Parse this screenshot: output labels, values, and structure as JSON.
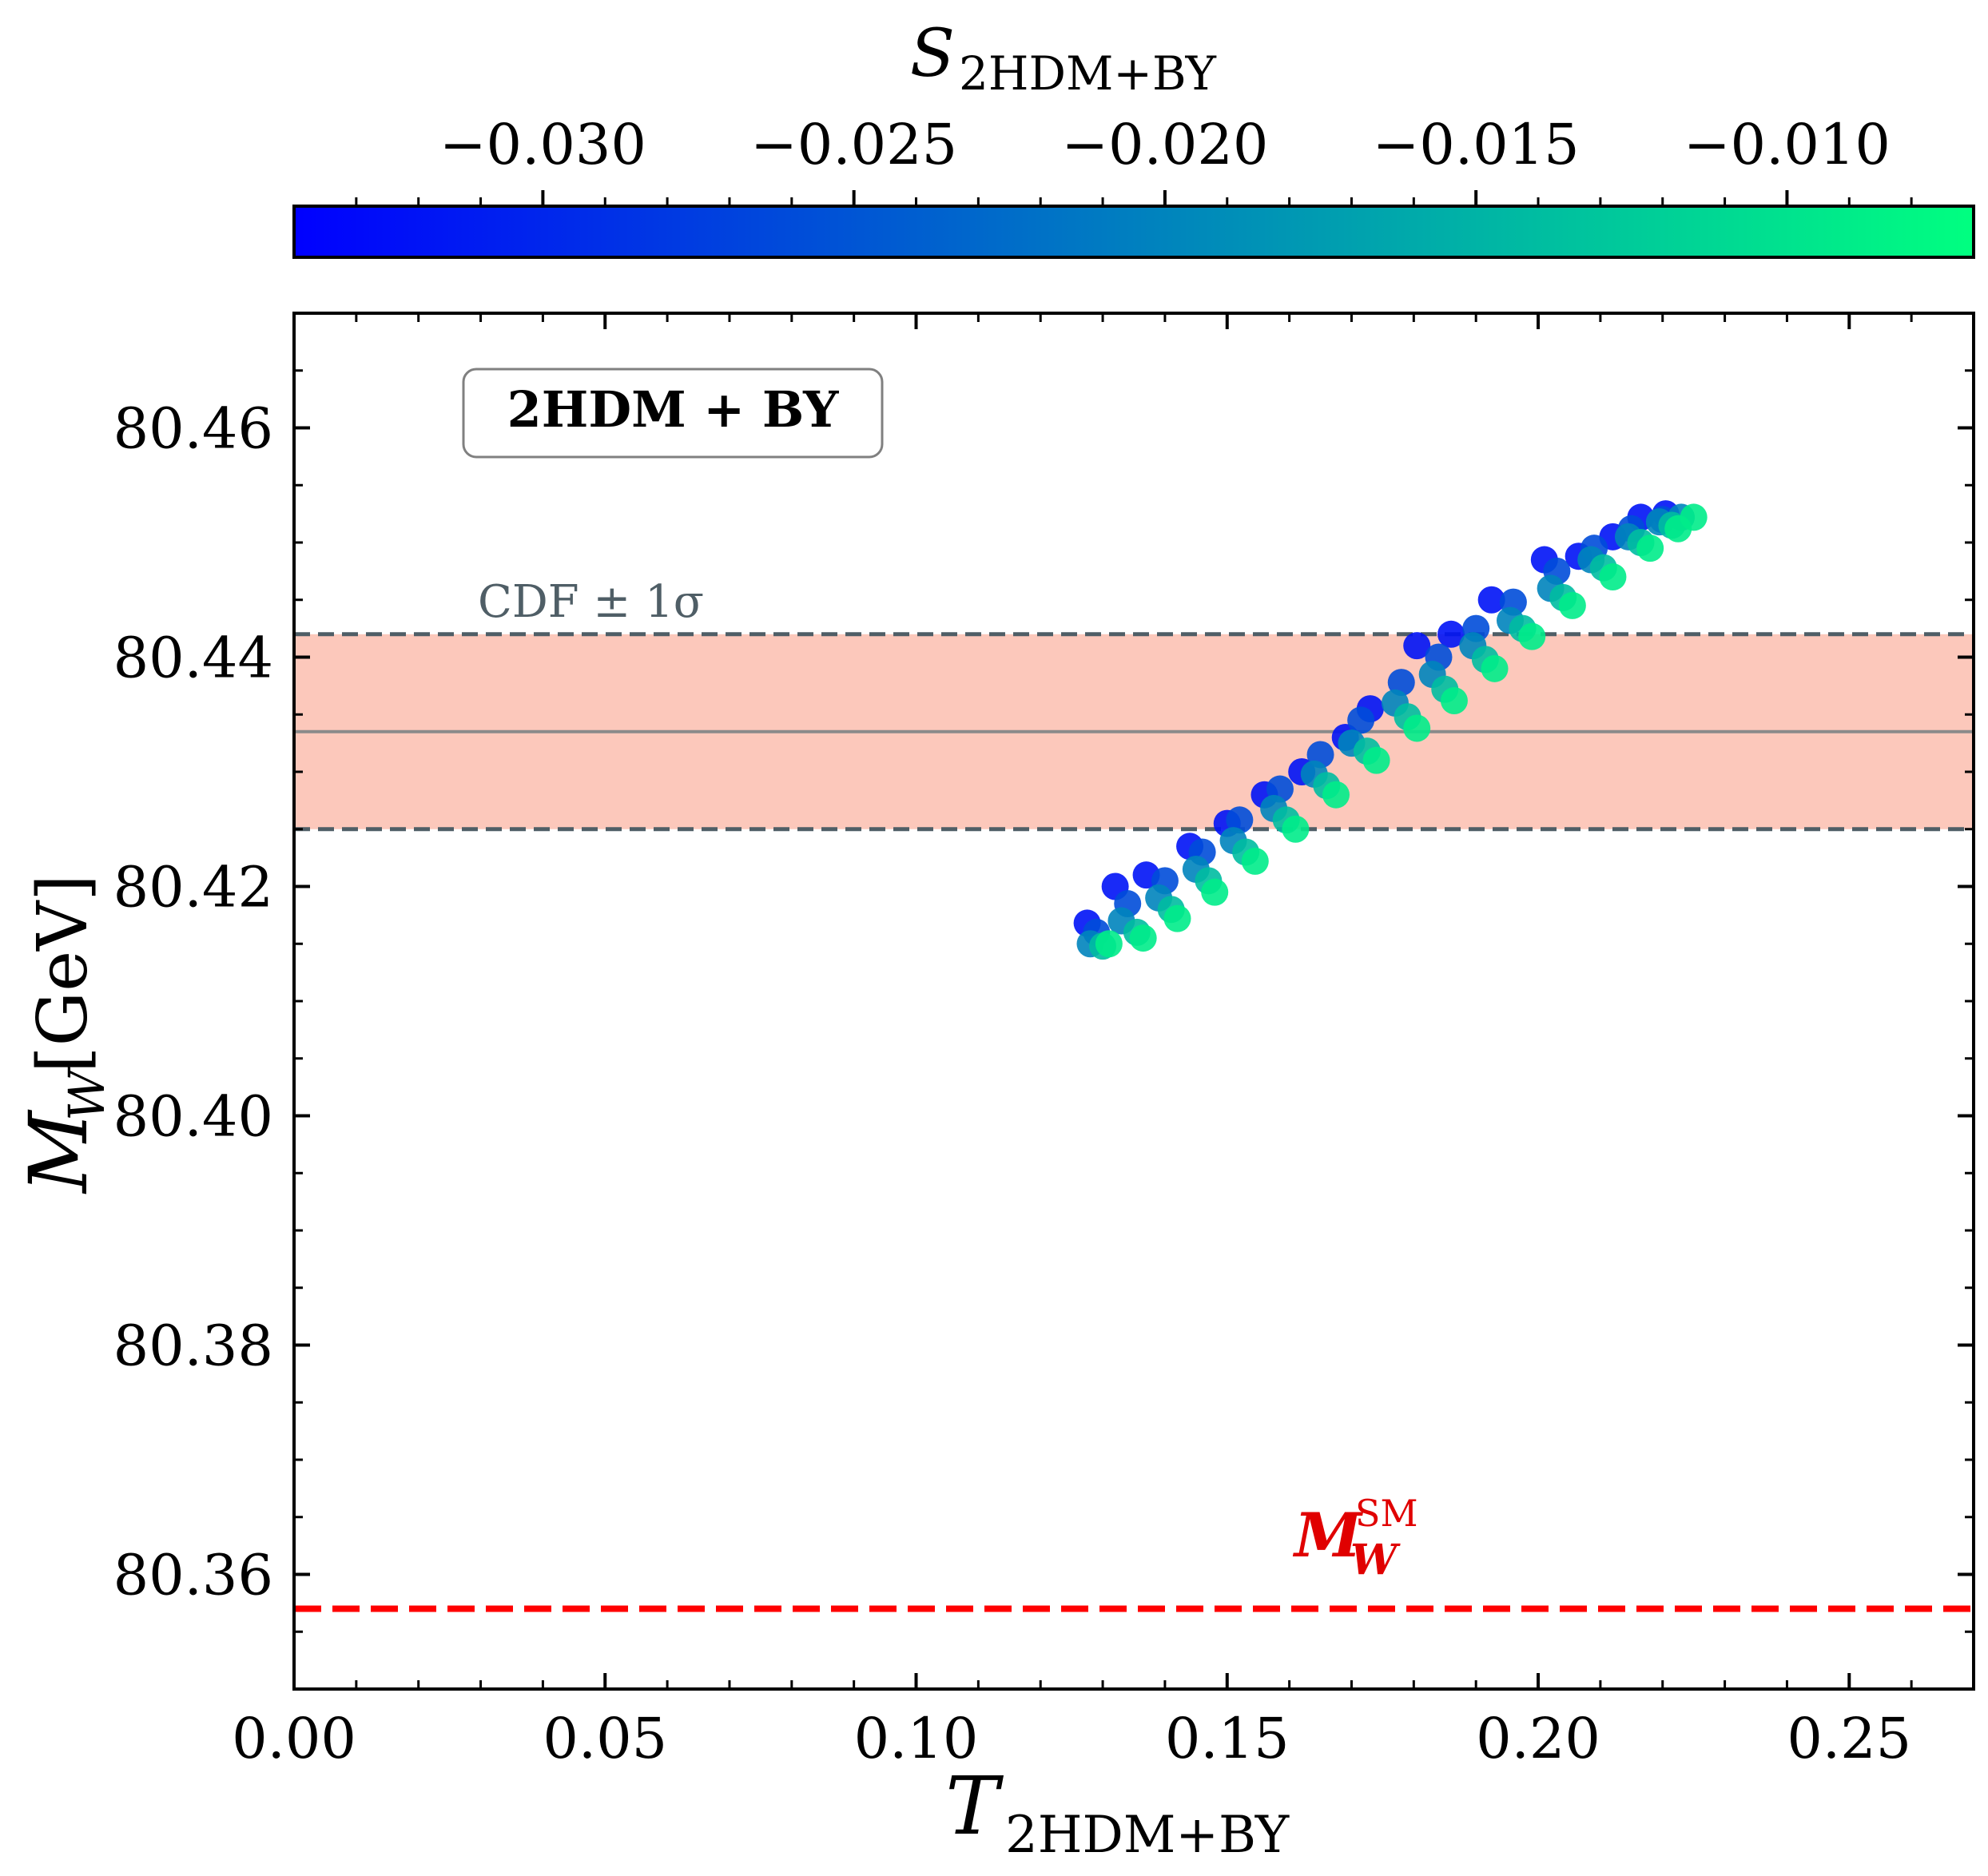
{
  "chart_data": {
    "type": "scatter",
    "title": "",
    "xlabel": "T",
    "xlabel_sub": "2HDM+BY",
    "ylabel": "M",
    "ylabel_sub": "W",
    "ylabel_unit": "[GeV]",
    "xlim": [
      0.0,
      0.27
    ],
    "ylim": [
      80.35,
      80.47
    ],
    "x_ticks": [
      0.0,
      0.05,
      0.1,
      0.15,
      0.2,
      0.25
    ],
    "x_tick_labels": [
      "0.00",
      "0.05",
      "0.10",
      "0.15",
      "0.20",
      "0.25"
    ],
    "y_ticks": [
      80.36,
      80.38,
      80.4,
      80.42,
      80.44,
      80.46
    ],
    "y_tick_labels": [
      "80.36",
      "80.38",
      "80.40",
      "80.42",
      "80.44",
      "80.46"
    ],
    "grid": false,
    "model_label": "2HDM + BY",
    "colorbar": {
      "label": "S",
      "label_sub": "2HDM+BY",
      "range": [
        -0.034,
        -0.007
      ],
      "ticks": [
        -0.03,
        -0.025,
        -0.02,
        -0.015,
        -0.01
      ],
      "tick_labels": [
        "−0.030",
        "−0.025",
        "−0.020",
        "−0.015",
        "−0.010"
      ],
      "color_low": "#0000ff",
      "color_high": "#00ff80",
      "placement": "top"
    },
    "cdf_band": {
      "label": "CDF ± 1σ",
      "central": 80.4335,
      "lower": 80.425,
      "upper": 80.442,
      "band_color": "#fcc8bb",
      "dash_color": "#4f5e66",
      "central_color": "#8a8a8a"
    },
    "sm_line": {
      "label": "M",
      "label_sub": "W",
      "label_sup": "SM",
      "value": 80.357,
      "color": "#ff0000"
    },
    "scatter_series": [
      {
        "name": "S_2HDM+BY = -0.032",
        "s_value": -0.032,
        "points": [
          {
            "x": 0.1275,
            "y": 80.4168
          },
          {
            "x": 0.132,
            "y": 80.42
          },
          {
            "x": 0.137,
            "y": 80.421
          },
          {
            "x": 0.144,
            "y": 80.4235
          },
          {
            "x": 0.15,
            "y": 80.4255
          },
          {
            "x": 0.156,
            "y": 80.428
          },
          {
            "x": 0.162,
            "y": 80.43
          },
          {
            "x": 0.169,
            "y": 80.433
          },
          {
            "x": 0.173,
            "y": 80.4355
          },
          {
            "x": 0.1805,
            "y": 80.441
          },
          {
            "x": 0.186,
            "y": 80.442
          },
          {
            "x": 0.1925,
            "y": 80.445
          },
          {
            "x": 0.201,
            "y": 80.4485
          },
          {
            "x": 0.2065,
            "y": 80.4488
          },
          {
            "x": 0.212,
            "y": 80.4505
          },
          {
            "x": 0.2165,
            "y": 80.4522
          },
          {
            "x": 0.2205,
            "y": 80.4525
          }
        ]
      },
      {
        "name": "S_2HDM+BY = -0.026",
        "s_value": -0.026,
        "points": [
          {
            "x": 0.129,
            "y": 80.416
          },
          {
            "x": 0.134,
            "y": 80.4185
          },
          {
            "x": 0.14,
            "y": 80.4205
          },
          {
            "x": 0.146,
            "y": 80.423
          },
          {
            "x": 0.152,
            "y": 80.4258
          },
          {
            "x": 0.1585,
            "y": 80.4285
          },
          {
            "x": 0.165,
            "y": 80.4315
          },
          {
            "x": 0.1715,
            "y": 80.4345
          },
          {
            "x": 0.178,
            "y": 80.4378
          },
          {
            "x": 0.184,
            "y": 80.44
          },
          {
            "x": 0.19,
            "y": 80.4425
          },
          {
            "x": 0.196,
            "y": 80.4448
          },
          {
            "x": 0.203,
            "y": 80.4475
          },
          {
            "x": 0.209,
            "y": 80.4495
          },
          {
            "x": 0.215,
            "y": 80.4512
          },
          {
            "x": 0.22,
            "y": 80.452
          }
        ]
      },
      {
        "name": "S_2HDM+BY = -0.020",
        "s_value": -0.02,
        "points": [
          {
            "x": 0.128,
            "y": 80.415
          },
          {
            "x": 0.133,
            "y": 80.417
          },
          {
            "x": 0.139,
            "y": 80.419
          },
          {
            "x": 0.145,
            "y": 80.4215
          },
          {
            "x": 0.151,
            "y": 80.424
          },
          {
            "x": 0.1575,
            "y": 80.4268
          },
          {
            "x": 0.164,
            "y": 80.4298
          },
          {
            "x": 0.17,
            "y": 80.4325
          },
          {
            "x": 0.177,
            "y": 80.436
          },
          {
            "x": 0.183,
            "y": 80.4385
          },
          {
            "x": 0.1895,
            "y": 80.441
          },
          {
            "x": 0.1955,
            "y": 80.4432
          },
          {
            "x": 0.202,
            "y": 80.446
          },
          {
            "x": 0.2085,
            "y": 80.4485
          },
          {
            "x": 0.2145,
            "y": 80.4505
          },
          {
            "x": 0.2195,
            "y": 80.4518
          },
          {
            "x": 0.223,
            "y": 80.4522
          }
        ]
      },
      {
        "name": "S_2HDM+BY = -0.014",
        "s_value": -0.014,
        "points": [
          {
            "x": 0.13,
            "y": 80.4148
          },
          {
            "x": 0.1355,
            "y": 80.416
          },
          {
            "x": 0.141,
            "y": 80.418
          },
          {
            "x": 0.147,
            "y": 80.4205
          },
          {
            "x": 0.153,
            "y": 80.423
          },
          {
            "x": 0.1595,
            "y": 80.4258
          },
          {
            "x": 0.166,
            "y": 80.4288
          },
          {
            "x": 0.1725,
            "y": 80.4318
          },
          {
            "x": 0.179,
            "y": 80.4348
          },
          {
            "x": 0.185,
            "y": 80.4372
          },
          {
            "x": 0.1915,
            "y": 80.4398
          },
          {
            "x": 0.1975,
            "y": 80.4425
          },
          {
            "x": 0.204,
            "y": 80.4452
          },
          {
            "x": 0.2105,
            "y": 80.4478
          },
          {
            "x": 0.2165,
            "y": 80.45
          },
          {
            "x": 0.2215,
            "y": 80.4515
          }
        ]
      },
      {
        "name": "S_2HDM+BY = -0.009",
        "s_value": -0.009,
        "points": [
          {
            "x": 0.131,
            "y": 80.415
          },
          {
            "x": 0.1365,
            "y": 80.4155
          },
          {
            "x": 0.142,
            "y": 80.4172
          },
          {
            "x": 0.148,
            "y": 80.4195
          },
          {
            "x": 0.1545,
            "y": 80.4222
          },
          {
            "x": 0.161,
            "y": 80.425
          },
          {
            "x": 0.1675,
            "y": 80.428
          },
          {
            "x": 0.174,
            "y": 80.431
          },
          {
            "x": 0.1805,
            "y": 80.4338
          },
          {
            "x": 0.1865,
            "y": 80.4362
          },
          {
            "x": 0.193,
            "y": 80.439
          },
          {
            "x": 0.199,
            "y": 80.4418
          },
          {
            "x": 0.2055,
            "y": 80.4445
          },
          {
            "x": 0.212,
            "y": 80.447
          },
          {
            "x": 0.218,
            "y": 80.4495
          },
          {
            "x": 0.2225,
            "y": 80.4512
          },
          {
            "x": 0.225,
            "y": 80.4522
          }
        ]
      }
    ]
  }
}
